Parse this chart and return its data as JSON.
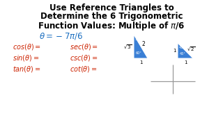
{
  "title_line1": "Use Reference Triangles to",
  "title_line2": "Determine the 6 Trigonometric",
  "title_line3": "Function Values: Multiple of $\\pi$/6",
  "theta_label": "$\\theta = -7\\pi/6$",
  "left_col": [
    "$cos(\\theta) =$",
    "$sin(\\theta) =$",
    "$tan(\\theta) =$"
  ],
  "right_col": [
    "$sec(\\theta) =$",
    "$csc(\\theta) =$",
    "$cot(\\theta) =$"
  ],
  "bg_color": "#ffffff",
  "title_color": "#000000",
  "theta_color": "#1a6ec0",
  "func_color": "#cc2200",
  "tri_color": "#3a7fd5",
  "axis_color": "#999999",
  "label_color": "#000000"
}
